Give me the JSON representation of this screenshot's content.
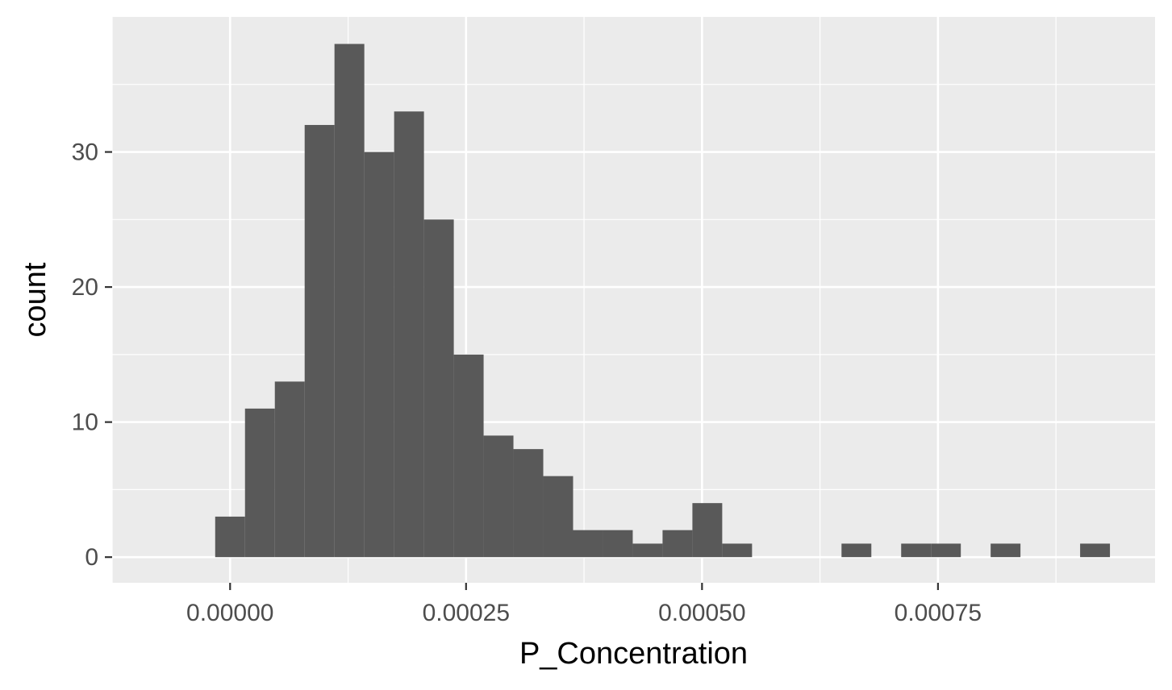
{
  "chart_data": {
    "type": "bar",
    "title": "",
    "xlabel": "P_Concentration",
    "ylabel": "count",
    "xlim": [
      -0.000125,
      0.00098
    ],
    "ylim": [
      -1.9,
      40.0
    ],
    "x_ticks": [
      0.0,
      0.00025,
      0.0005,
      0.00075
    ],
    "x_tick_labels": [
      "0.00000",
      "0.00025",
      "0.00050",
      "0.00075"
    ],
    "y_ticks": [
      0,
      10,
      20,
      30
    ],
    "y_tick_labels": [
      "0",
      "10",
      "20",
      "30"
    ],
    "grid": true,
    "legend": "none",
    "colors": {
      "panel_background": "#ebebeb",
      "grid_line": "#ffffff",
      "bar_fill": "#595959",
      "tick_label": "#4d4d4d",
      "tick_mark": "#333333"
    },
    "bins": [
      {
        "x_start": -1.58e-05,
        "x_end": 1.58e-05,
        "count": 3
      },
      {
        "x_start": 1.58e-05,
        "x_end": 4.74e-05,
        "count": 11
      },
      {
        "x_start": 4.74e-05,
        "x_end": 7.9e-05,
        "count": 13
      },
      {
        "x_start": 7.9e-05,
        "x_end": 0.0001106,
        "count": 32
      },
      {
        "x_start": 0.0001106,
        "x_end": 0.0001422,
        "count": 38
      },
      {
        "x_start": 0.0001422,
        "x_end": 0.0001738,
        "count": 30
      },
      {
        "x_start": 0.0001738,
        "x_end": 0.0002054,
        "count": 33
      },
      {
        "x_start": 0.0002054,
        "x_end": 0.000237,
        "count": 25
      },
      {
        "x_start": 0.000237,
        "x_end": 0.0002686,
        "count": 15
      },
      {
        "x_start": 0.0002686,
        "x_end": 0.0003002,
        "count": 9
      },
      {
        "x_start": 0.0003002,
        "x_end": 0.0003318,
        "count": 8
      },
      {
        "x_start": 0.0003318,
        "x_end": 0.0003634,
        "count": 6
      },
      {
        "x_start": 0.0003634,
        "x_end": 0.000395,
        "count": 2
      },
      {
        "x_start": 0.000395,
        "x_end": 0.0004266,
        "count": 2
      },
      {
        "x_start": 0.0004266,
        "x_end": 0.0004582,
        "count": 1
      },
      {
        "x_start": 0.0004582,
        "x_end": 0.0004898,
        "count": 2
      },
      {
        "x_start": 0.0004898,
        "x_end": 0.0005214,
        "count": 4
      },
      {
        "x_start": 0.0005214,
        "x_end": 0.000553,
        "count": 1
      },
      {
        "x_start": 0.000553,
        "x_end": 0.0005846,
        "count": 0
      },
      {
        "x_start": 0.0005846,
        "x_end": 0.0006162,
        "count": 0
      },
      {
        "x_start": 0.0006162,
        "x_end": 0.0006478,
        "count": 0
      },
      {
        "x_start": 0.0006478,
        "x_end": 0.0006794,
        "count": 1
      },
      {
        "x_start": 0.0006794,
        "x_end": 0.000711,
        "count": 0
      },
      {
        "x_start": 0.000711,
        "x_end": 0.0007426,
        "count": 1
      },
      {
        "x_start": 0.0007426,
        "x_end": 0.0007742,
        "count": 1
      },
      {
        "x_start": 0.0007742,
        "x_end": 0.0008058,
        "count": 0
      },
      {
        "x_start": 0.0008058,
        "x_end": 0.0008374,
        "count": 1
      },
      {
        "x_start": 0.0008374,
        "x_end": 0.000869,
        "count": 0
      },
      {
        "x_start": 0.000869,
        "x_end": 0.0009006,
        "count": 0
      },
      {
        "x_start": 0.0009006,
        "x_end": 0.0009322,
        "count": 1
      }
    ]
  }
}
